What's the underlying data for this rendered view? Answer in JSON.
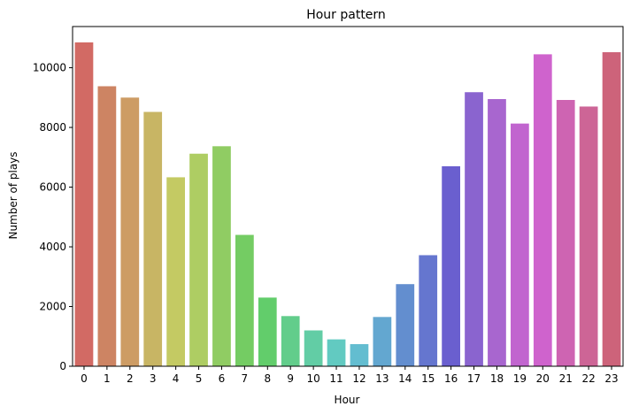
{
  "chart_data": {
    "type": "bar",
    "title": "Hour pattern",
    "xlabel": "Hour",
    "ylabel": "Number of plays",
    "categories": [
      "0",
      "1",
      "2",
      "3",
      "4",
      "5",
      "6",
      "7",
      "8",
      "9",
      "10",
      "11",
      "12",
      "13",
      "14",
      "15",
      "16",
      "17",
      "18",
      "19",
      "20",
      "21",
      "22",
      "23"
    ],
    "values": [
      10850,
      9380,
      9000,
      8520,
      6330,
      7120,
      7370,
      4400,
      2300,
      1680,
      1200,
      900,
      740,
      1650,
      2750,
      3720,
      6700,
      9180,
      8950,
      8130,
      10450,
      8920,
      8700,
      10520
    ],
    "ylim": [
      0,
      11380
    ],
    "yticks": [
      0,
      2000,
      4000,
      6000,
      8000,
      10000
    ],
    "grid": false,
    "legend": "none",
    "colors": [
      "#d26a64",
      "#cd8463",
      "#cd9c64",
      "#c8b564",
      "#c4ca63",
      "#aecd63",
      "#90cc63",
      "#74cc63",
      "#62cd6b",
      "#62cd8b",
      "#62cda5",
      "#62cac1",
      "#63bdd0",
      "#63a7d0",
      "#638ecf",
      "#6576cf",
      "#6a5fcf",
      "#8a64cf",
      "#a866cf",
      "#c165cf",
      "#cf63cd",
      "#ce64b2",
      "#cd6596",
      "#cd637a"
    ]
  }
}
